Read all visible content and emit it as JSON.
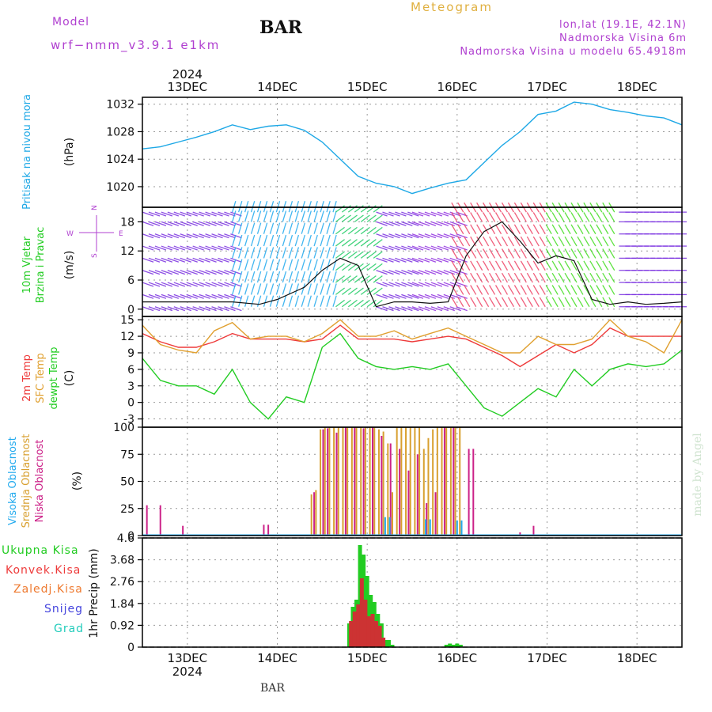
{
  "header": {
    "model_label": "Model",
    "model_name": "wrf−nmm_v3.9.1  e1km",
    "station": "BAR",
    "chart_title": "Meteogram",
    "location": "lon,lat (19.1E, 42.1N)",
    "elevation": "Nadmorska Visina 6m",
    "model_elevation": "Nadmorska Visina u modelu 65.4918m",
    "footer_station": "BAR",
    "watermark": "made by Angel"
  },
  "colors": {
    "pressure": "#1ea8e6",
    "temp2m": "#ee3a3a",
    "sfc_temp": "#e0a030",
    "dewpt": "#22cc22",
    "high_cloud": "#22aaee",
    "mid_cloud": "#d8a030",
    "low_cloud": "#cc2288",
    "precip_total": "#22cc22",
    "precip_conv": "#cc3333",
    "purple_text": "#b040d0",
    "title_gold": "#e0b040"
  },
  "chart_data": [
    {
      "id": "pressure",
      "type": "line",
      "ylabel_left": "Pritisak na nivou mora",
      "unit": "(hPa)",
      "ylim": [
        1017,
        1033
      ],
      "yticks": [
        1020,
        1024,
        1028,
        1032
      ],
      "x": [
        0,
        0.2,
        0.4,
        0.6,
        0.8,
        1.0,
        1.2,
        1.4,
        1.6,
        1.8,
        2.0,
        2.2,
        2.4,
        2.6,
        2.8,
        3.0,
        3.2,
        3.4,
        3.6,
        3.8,
        4.0,
        4.2,
        4.4,
        4.6,
        4.8,
        5.0,
        5.2,
        5.4,
        5.6,
        5.8,
        6.0
      ],
      "values": [
        1025.5,
        1025.8,
        1026.5,
        1027.2,
        1028.0,
        1029.0,
        1028.3,
        1028.8,
        1029.0,
        1028.2,
        1026.5,
        1024.0,
        1021.5,
        1020.5,
        1020.0,
        1019.0,
        1019.8,
        1020.5,
        1021.0,
        1023.5,
        1026.0,
        1028.0,
        1030.5,
        1031.0,
        1032.3,
        1032.0,
        1031.2,
        1030.8,
        1030.3,
        1030.0,
        1029.0
      ]
    },
    {
      "id": "wind",
      "type": "line",
      "ylabel_left": [
        "10m Vjetar",
        "Brzina i Pravac"
      ],
      "unit": "(m/s)",
      "ylim": [
        -1.5,
        21
      ],
      "yticks": [
        0,
        6,
        12,
        18
      ],
      "compass": {
        "n": "N",
        "w": "W",
        "e": "E",
        "s": "S"
      },
      "x": [
        0,
        0.5,
        1.0,
        1.3,
        1.5,
        1.8,
        2.0,
        2.2,
        2.4,
        2.6,
        2.8,
        3.0,
        3.2,
        3.4,
        3.6,
        3.8,
        4.0,
        4.2,
        4.4,
        4.6,
        4.8,
        5.0,
        5.2,
        5.4,
        5.6,
        5.8,
        6.0
      ],
      "values": [
        1.5,
        1.5,
        1.5,
        1.0,
        2.0,
        4.5,
        8.0,
        10.5,
        9.0,
        0.5,
        1.5,
        1.5,
        1.2,
        1.5,
        11.0,
        16.0,
        18.0,
        14.0,
        9.5,
        11.0,
        10.0,
        2.0,
        1.0,
        1.5,
        1.0,
        1.2,
        1.5
      ],
      "barb_direction_bands": [
        {
          "from": 0.0,
          "to": 1.0,
          "dir": "SE",
          "color": "#7a30e0"
        },
        {
          "from": 1.0,
          "to": 2.15,
          "dir": "N",
          "color": "#22aaee"
        },
        {
          "from": 2.15,
          "to": 2.6,
          "dir": "NE",
          "color": "#22cc66"
        },
        {
          "from": 2.6,
          "to": 3.0,
          "dir": "SE",
          "color": "#7a30e0"
        },
        {
          "from": 3.0,
          "to": 3.5,
          "dir": "SE",
          "color": "#9030e0"
        },
        {
          "from": 3.5,
          "to": 4.55,
          "dir": "SW",
          "color": "#ee4466"
        },
        {
          "from": 4.55,
          "to": 5.3,
          "dir": "SW",
          "color": "#44dd22"
        },
        {
          "from": 5.3,
          "to": 6.0,
          "dir": "E",
          "color": "#7a30e0"
        }
      ]
    },
    {
      "id": "temperature",
      "type": "line",
      "ylabel_left": [
        "2m Temp",
        "SFC Temp",
        "dewpt Temp"
      ],
      "unit": "(C)",
      "ylim": [
        -4.5,
        15.6
      ],
      "yticks": [
        -3,
        0,
        3,
        6,
        9,
        12,
        15
      ],
      "x": [
        0,
        0.2,
        0.4,
        0.6,
        0.8,
        1.0,
        1.2,
        1.4,
        1.6,
        1.8,
        2.0,
        2.2,
        2.4,
        2.6,
        2.8,
        3.0,
        3.2,
        3.4,
        3.6,
        3.8,
        4.0,
        4.2,
        4.4,
        4.6,
        4.8,
        5.0,
        5.2,
        5.4,
        5.6,
        5.8,
        6.0
      ],
      "series": [
        {
          "name": "2m Temp",
          "color_key": "temp2m",
          "values": [
            12.5,
            11.0,
            10.0,
            10.0,
            11.0,
            12.5,
            11.5,
            11.5,
            11.5,
            11.0,
            11.5,
            14.0,
            11.5,
            11.5,
            11.5,
            11.0,
            11.5,
            12.0,
            11.5,
            10.0,
            8.5,
            6.5,
            8.5,
            10.5,
            9.0,
            10.5,
            13.5,
            12.0,
            12.0,
            12.0,
            12.0
          ]
        },
        {
          "name": "SFC Temp",
          "color_key": "sfc_temp",
          "values": [
            14.0,
            10.5,
            9.5,
            9.0,
            13.0,
            14.5,
            11.5,
            12.0,
            12.0,
            11.0,
            12.5,
            15.0,
            12.0,
            12.0,
            13.0,
            11.5,
            12.5,
            13.5,
            12.0,
            10.5,
            9.0,
            9.0,
            12.0,
            10.5,
            10.5,
            11.5,
            15.0,
            12.0,
            11.0,
            9.0,
            15.0
          ]
        },
        {
          "name": "dewpt Temp",
          "color_key": "dewpt",
          "values": [
            8.0,
            4.0,
            3.0,
            3.0,
            1.5,
            6.0,
            0.0,
            -3.0,
            1.0,
            0.0,
            10.0,
            12.5,
            8.0,
            6.5,
            6.0,
            6.5,
            6.0,
            7.0,
            3.0,
            -1.0,
            -2.5,
            0.0,
            2.5,
            1.0,
            6.0,
            3.0,
            6.0,
            7.0,
            6.5,
            7.0,
            9.5
          ]
        }
      ]
    },
    {
      "id": "cloud",
      "type": "bar",
      "ylabel_left": [
        "Visoka Oblacnost",
        "Srednja Oblacnost",
        "Niska Oblacnost"
      ],
      "unit": "(%)",
      "ylim": [
        0,
        100
      ],
      "yticks": [
        0,
        25,
        50,
        75,
        100
      ],
      "series": [
        {
          "name": "Srednja Oblacnost",
          "color_key": "mid_cloud",
          "x": [
            1.88,
            1.93,
            1.98,
            2.03,
            2.08,
            2.13,
            2.18,
            2.23,
            2.28,
            2.33,
            2.38,
            2.43,
            2.48,
            2.53,
            2.58,
            2.63,
            2.68,
            2.73,
            2.78,
            2.83,
            2.88,
            2.93,
            2.98,
            3.03,
            3.08,
            3.13,
            3.18,
            3.23,
            3.28,
            3.33,
            3.38,
            3.43,
            3.48,
            3.53
          ],
          "values": [
            38,
            42,
            98,
            100,
            100,
            100,
            100,
            100,
            100,
            100,
            100,
            100,
            100,
            100,
            100,
            98,
            96,
            85,
            40,
            100,
            100,
            100,
            100,
            100,
            100,
            80,
            90,
            98,
            100,
            100,
            100,
            100,
            100,
            100
          ]
        },
        {
          "name": "Niska Oblacnost",
          "color_key": "low_cloud",
          "x": [
            0.05,
            0.2,
            0.45,
            1.35,
            1.4,
            1.91,
            2.01,
            2.06,
            2.16,
            2.26,
            2.36,
            2.46,
            2.56,
            2.66,
            2.76,
            2.86,
            2.96,
            3.06,
            3.16,
            3.26,
            3.36,
            3.46,
            3.63,
            3.68,
            4.2,
            4.35
          ],
          "values": [
            28,
            28,
            9,
            10,
            10,
            40,
            98,
            99,
            95,
            100,
            100,
            99,
            100,
            92,
            85,
            80,
            60,
            75,
            30,
            40,
            100,
            100,
            80,
            80,
            3,
            9
          ]
        },
        {
          "name": "Visoka Oblacnost",
          "color_key": "high_cloud",
          "x": [
            2.7,
            2.75,
            3.15,
            3.2,
            3.5,
            3.55
          ],
          "values": [
            17,
            17,
            15,
            15,
            14,
            14
          ]
        }
      ]
    },
    {
      "id": "precip",
      "type": "bar",
      "ylabel_left": "1hr Precip (mm)",
      "ylim": [
        0,
        4.6
      ],
      "yticks": [
        0,
        0.92,
        1.84,
        2.76,
        3.68,
        4.6
      ],
      "legend": [
        "Ukupna Kisa",
        "Konvek.Kisa",
        "Zaledj.Kisa",
        "Snijeg",
        "Grad"
      ],
      "legend_colors": [
        "#22cc22",
        "#ee3a3a",
        "#ee7a30",
        "#4444dd",
        "#22ccbb"
      ],
      "series": [
        {
          "name": "Ukupna Kisa",
          "color_key": "precip_total",
          "x": [
            2.3,
            2.34,
            2.38,
            2.42,
            2.46,
            2.5,
            2.54,
            2.58,
            2.62,
            2.66,
            2.7,
            2.74,
            2.78,
            3.38,
            3.42,
            3.46,
            3.5,
            3.54
          ],
          "values": [
            1.0,
            1.7,
            2.0,
            4.3,
            3.9,
            3.0,
            2.2,
            1.9,
            1.4,
            1.0,
            0.3,
            0.3,
            0.1,
            0.1,
            0.15,
            0.1,
            0.15,
            0.1
          ]
        },
        {
          "name": "Konvek.Kisa",
          "color_key": "precip_conv",
          "x": [
            2.32,
            2.36,
            2.4,
            2.44,
            2.48,
            2.52,
            2.56,
            2.6,
            2.64,
            2.68
          ],
          "values": [
            1.1,
            1.5,
            1.8,
            2.9,
            2.0,
            1.3,
            1.4,
            1.1,
            0.9,
            0.4
          ]
        }
      ]
    }
  ],
  "time_axis": {
    "top_year": "2024",
    "bottom_year": "2024",
    "labels": [
      "13DEC",
      "14DEC",
      "15DEC",
      "16DEC",
      "17DEC",
      "18DEC"
    ],
    "positions": [
      0.5,
      1.5,
      2.5,
      3.5,
      4.5,
      5.5
    ],
    "range": [
      0,
      6
    ]
  }
}
